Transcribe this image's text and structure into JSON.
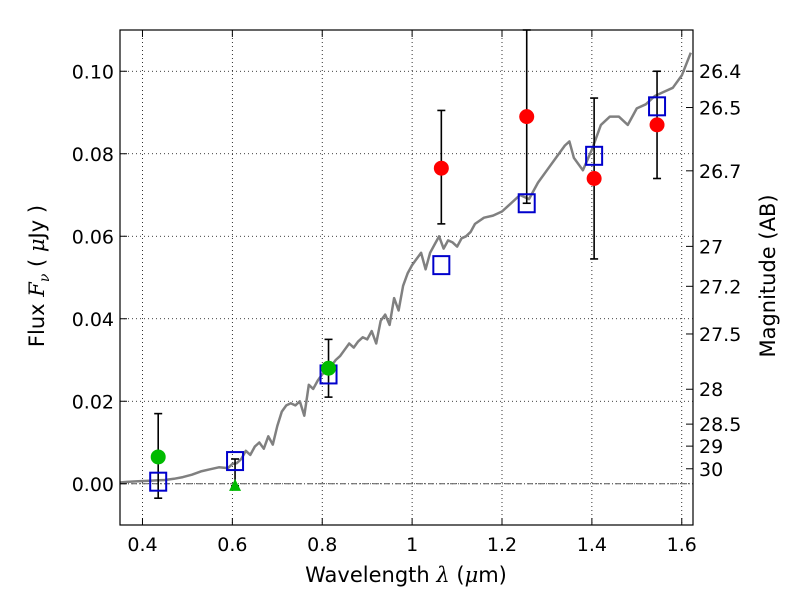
{
  "chart_data": {
    "type": "scatter",
    "title": "",
    "xlabel": "Wavelength  λ (μm)",
    "ylabel": "Flux  Fν  ( μJy )",
    "ylabel_parts": {
      "pre": "Flux ",
      "sym": "F",
      "sub": "ν",
      "post": "  ( ",
      "mu": "μ",
      "unit": "Jy )"
    },
    "xlabel_parts": {
      "pre": "Wavelength  ",
      "sym": "λ",
      "post": " (",
      "mu": "μ",
      "unit": "m)"
    },
    "ylabel_right": "Magnitude (AB)",
    "xlim": [
      0.35,
      1.625
    ],
    "ylim": [
      -0.01,
      0.11
    ],
    "grid": true,
    "x_ticks": [
      {
        "value": 0.4,
        "label": "0.4"
      },
      {
        "value": 0.6,
        "label": "0.6"
      },
      {
        "value": 0.8,
        "label": "0.8"
      },
      {
        "value": 1.0,
        "label": "1"
      },
      {
        "value": 1.2,
        "label": "1.2"
      },
      {
        "value": 1.4,
        "label": "1.4"
      },
      {
        "value": 1.6,
        "label": "1.6"
      }
    ],
    "y_ticks": [
      {
        "value": 0.0,
        "label": "0.00"
      },
      {
        "value": 0.02,
        "label": "0.02"
      },
      {
        "value": 0.04,
        "label": "0.04"
      },
      {
        "value": 0.06,
        "label": "0.06"
      },
      {
        "value": 0.08,
        "label": "0.08"
      },
      {
        "value": 0.1,
        "label": "0.10"
      }
    ],
    "mag_ticks": [
      {
        "value": 26.4,
        "label": "26.4"
      },
      {
        "value": 26.5,
        "label": "26.5"
      },
      {
        "value": 26.7,
        "label": "26.7"
      },
      {
        "value": 27.0,
        "label": "27"
      },
      {
        "value": 27.2,
        "label": "27.2"
      },
      {
        "value": 27.5,
        "label": "27.5"
      },
      {
        "value": 28.0,
        "label": "28"
      },
      {
        "value": 28.5,
        "label": "28.5"
      },
      {
        "value": 29.0,
        "label": "29"
      },
      {
        "value": 30.0,
        "label": "30"
      }
    ],
    "model_spectrum": {
      "name": "model SED",
      "color": "#808080",
      "x": [
        0.35,
        0.37,
        0.39,
        0.41,
        0.43,
        0.45,
        0.47,
        0.49,
        0.51,
        0.53,
        0.55,
        0.57,
        0.59,
        0.6,
        0.61,
        0.62,
        0.63,
        0.64,
        0.65,
        0.66,
        0.67,
        0.68,
        0.69,
        0.7,
        0.71,
        0.72,
        0.73,
        0.74,
        0.75,
        0.76,
        0.77,
        0.78,
        0.79,
        0.8,
        0.81,
        0.82,
        0.83,
        0.84,
        0.85,
        0.86,
        0.87,
        0.88,
        0.89,
        0.9,
        0.91,
        0.92,
        0.93,
        0.94,
        0.95,
        0.96,
        0.97,
        0.98,
        0.99,
        1.0,
        1.01,
        1.02,
        1.03,
        1.04,
        1.05,
        1.06,
        1.07,
        1.08,
        1.09,
        1.1,
        1.11,
        1.12,
        1.13,
        1.14,
        1.16,
        1.18,
        1.2,
        1.22,
        1.24,
        1.26,
        1.28,
        1.3,
        1.32,
        1.34,
        1.35,
        1.36,
        1.38,
        1.4,
        1.42,
        1.44,
        1.46,
        1.48,
        1.5,
        1.52,
        1.54,
        1.56,
        1.58,
        1.6,
        1.62
      ],
      "y": [
        0.0003,
        0.0005,
        0.0006,
        0.0007,
        0.0008,
        0.0009,
        0.0012,
        0.0016,
        0.0022,
        0.003,
        0.0035,
        0.004,
        0.0038,
        0.0048,
        0.005,
        0.006,
        0.008,
        0.007,
        0.009,
        0.01,
        0.0085,
        0.0115,
        0.0095,
        0.014,
        0.0175,
        0.019,
        0.0195,
        0.019,
        0.02,
        0.0165,
        0.024,
        0.023,
        0.025,
        0.0265,
        0.0275,
        0.0285,
        0.03,
        0.031,
        0.0325,
        0.034,
        0.033,
        0.0345,
        0.0355,
        0.035,
        0.037,
        0.034,
        0.0395,
        0.041,
        0.0385,
        0.045,
        0.042,
        0.048,
        0.051,
        0.053,
        0.0545,
        0.056,
        0.052,
        0.056,
        0.058,
        0.06,
        0.057,
        0.059,
        0.0585,
        0.0575,
        0.0595,
        0.06,
        0.061,
        0.063,
        0.0645,
        0.065,
        0.066,
        0.068,
        0.07,
        0.069,
        0.073,
        0.076,
        0.079,
        0.082,
        0.083,
        0.079,
        0.076,
        0.081,
        0.087,
        0.089,
        0.089,
        0.087,
        0.091,
        0.092,
        0.094,
        0.095,
        0.096,
        0.099,
        0.1045
      ]
    },
    "series": [
      {
        "name": "model photometry",
        "marker": "open-square",
        "color": "#0000cc",
        "x": [
          0.435,
          0.606,
          0.814,
          1.065,
          1.255,
          1.405,
          1.545
        ],
        "y": [
          0.0005,
          0.0055,
          0.0265,
          0.053,
          0.068,
          0.0795,
          0.0915
        ]
      },
      {
        "name": "observed (red)",
        "marker": "filled-circle",
        "color": "#ff0000",
        "x": [
          1.065,
          1.255,
          1.405,
          1.545
        ],
        "y": [
          0.0765,
          0.089,
          0.074,
          0.087
        ],
        "yerr_low": [
          0.063,
          0.068,
          0.0545,
          0.074
        ],
        "yerr_high": [
          0.0905,
          0.11,
          0.0935,
          0.1
        ]
      },
      {
        "name": "observed (green)",
        "marker": "filled-circle",
        "color": "#00bb00",
        "x": [
          0.435,
          0.814
        ],
        "y": [
          0.0065,
          0.028
        ],
        "yerr_low": [
          -0.0035,
          0.021
        ],
        "yerr_high": [
          0.017,
          0.035
        ]
      },
      {
        "name": "upper limit (green)",
        "marker": "filled-triangle",
        "color": "#00bb00",
        "x": [
          0.606
        ],
        "y": [
          -0.0005
        ],
        "yerr_low": [
          -0.0005
        ],
        "yerr_high": [
          0.006
        ]
      }
    ],
    "zero_line": {
      "y": 0.0,
      "style": "dashdot"
    }
  }
}
